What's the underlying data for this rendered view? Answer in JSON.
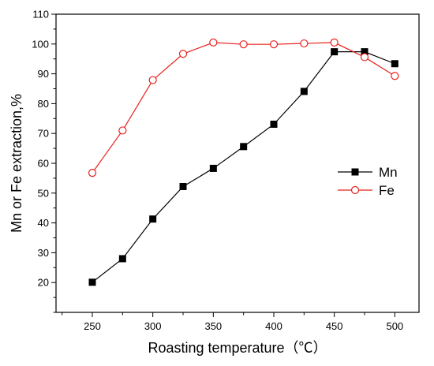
{
  "chart_data": {
    "type": "line",
    "title": "",
    "xlabel": "Roasting temperature（℃）",
    "ylabel": "Mn or Fe extraction,%",
    "xlim": [
      220,
      520
    ],
    "ylim": [
      10,
      110
    ],
    "x_ticks": [
      250,
      300,
      350,
      400,
      450,
      500
    ],
    "y_ticks": [
      20,
      30,
      40,
      50,
      60,
      70,
      80,
      90,
      100,
      110
    ],
    "grid": false,
    "legend_position": "right",
    "x": [
      250,
      275,
      300,
      325,
      350,
      375,
      400,
      425,
      450,
      475,
      500
    ],
    "series": [
      {
        "name": "Mn",
        "color": "#000000",
        "marker": "filled-square",
        "values": [
          20.1,
          28.0,
          41.3,
          52.2,
          58.3,
          65.6,
          73.1,
          84.1,
          97.4,
          97.4,
          93.4
        ]
      },
      {
        "name": "Fe",
        "color": "#e8201c",
        "marker": "open-circle",
        "values": [
          56.8,
          71.0,
          87.9,
          96.7,
          100.5,
          99.9,
          99.9,
          100.2,
          100.5,
          95.6,
          89.3
        ]
      }
    ]
  }
}
